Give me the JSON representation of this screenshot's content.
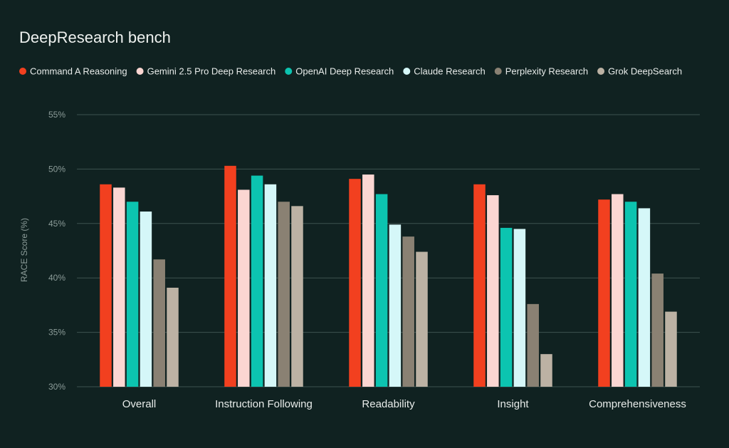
{
  "chart_data": {
    "type": "bar",
    "title": "DeepResearch bench",
    "xlabel": "",
    "ylabel": "RACE Score (%)",
    "ylim": [
      30,
      55
    ],
    "yticks": [
      30,
      35,
      40,
      45,
      50,
      55
    ],
    "ytick_labels": [
      "30%",
      "35%",
      "40%",
      "45%",
      "50%",
      "55%"
    ],
    "grid": true,
    "legend_position": "top",
    "categories": [
      "Overall",
      "Instruction Following",
      "Readability",
      "Insight",
      "Comprehensiveness"
    ],
    "series": [
      {
        "name": "Command A Reasoning",
        "color": "#f2401f",
        "values": [
          48.6,
          50.3,
          49.1,
          48.6,
          47.2
        ]
      },
      {
        "name": "Gemini 2.5 Pro Deep Research",
        "color": "#fbd6d2",
        "values": [
          48.3,
          48.1,
          49.5,
          47.6,
          47.7
        ]
      },
      {
        "name": "OpenAI Deep Research",
        "color": "#0cc4b0",
        "values": [
          47.0,
          49.4,
          47.7,
          44.6,
          47.0
        ]
      },
      {
        "name": "Claude Research",
        "color": "#d5f7f8",
        "values": [
          46.1,
          48.6,
          44.9,
          44.5,
          46.4
        ]
      },
      {
        "name": "Perplexity Research",
        "color": "#8a8173",
        "values": [
          41.7,
          47.0,
          43.8,
          37.6,
          40.4
        ]
      },
      {
        "name": "Grok DeepSearch",
        "color": "#bcb2a4",
        "values": [
          39.1,
          46.6,
          42.4,
          33.0,
          36.9
        ]
      }
    ]
  },
  "colors": {
    "background": "#102221",
    "gridline": "#3d5250",
    "text": "#e8ecea",
    "muted_text": "#8c9c99"
  }
}
